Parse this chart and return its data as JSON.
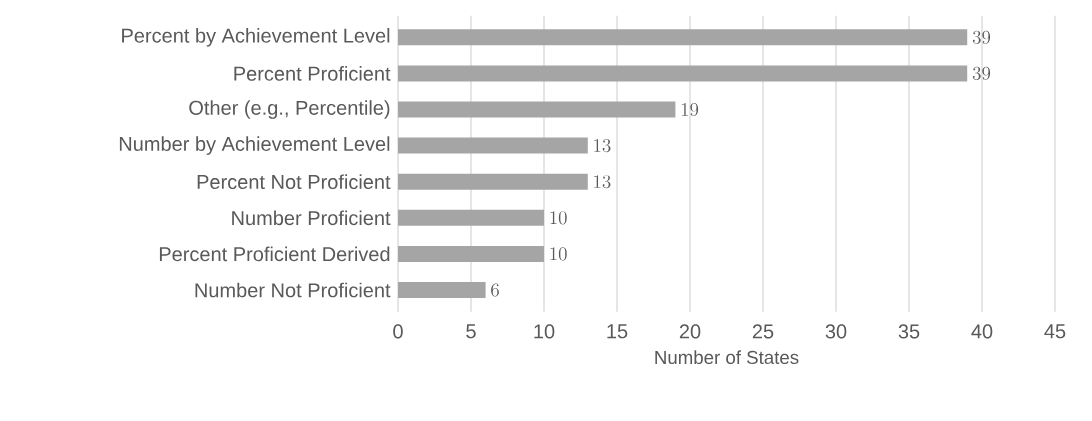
{
  "chart_data": {
    "type": "bar",
    "orientation": "horizontal",
    "xlabel": "Number of States",
    "categories": [
      "Percent by Achievement Level",
      "Percent Proficient",
      "Other (e.g., Percentile)",
      "Number by Achievement Level",
      "Percent Not Proficient",
      "Number Proficient",
      "Percent Proficient Derived",
      "Number Not Proficient"
    ],
    "values": [
      39,
      39,
      19,
      13,
      13,
      10,
      10,
      6
    ],
    "color": "#a5a5a5",
    "xlim": [
      0,
      45
    ],
    "xticks": [
      0,
      5,
      10,
      15,
      20,
      25,
      30,
      35,
      40,
      45
    ],
    "grid": "x",
    "data_labels": true
  }
}
